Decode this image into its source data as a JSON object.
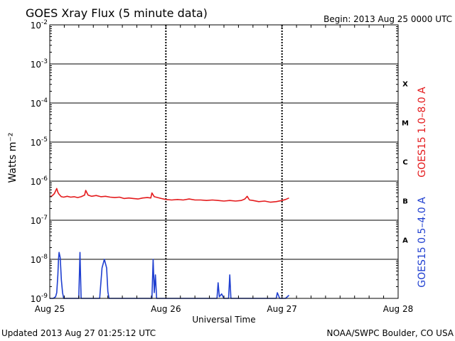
{
  "colors": {
    "long_channel": "#e41a1c",
    "short_channel": "#1f3fd0",
    "axes": "#000000",
    "background": "#ffffff"
  },
  "header": {
    "title": "GOES Xray Flux (5 minute data)",
    "begin_label": "Begin:  2013 Aug 25 0000 UTC"
  },
  "footer": {
    "updated": "Updated 2013 Aug 27 01:25:12 UTC",
    "source": "NOAA/SWPC Boulder, CO USA"
  },
  "chart_data": {
    "type": "line",
    "title": "GOES Xray Flux (5 minute data)",
    "xlabel": "Universal Time",
    "ylabel": "Watts m⁻²",
    "yscale": "log",
    "ylim_exponent": [
      -9,
      -2
    ],
    "xlim_days": [
      0,
      3
    ],
    "x_ticks": [
      {
        "day": 0,
        "label": "Aug 25"
      },
      {
        "day": 1,
        "label": "Aug 26"
      },
      {
        "day": 2,
        "label": "Aug 27"
      },
      {
        "day": 3,
        "label": "Aug 28"
      }
    ],
    "y_ticks": [
      {
        "exp": -2,
        "label": "-2"
      },
      {
        "exp": -3,
        "label": "-3"
      },
      {
        "exp": -4,
        "label": "-4"
      },
      {
        "exp": -5,
        "label": "-5"
      },
      {
        "exp": -6,
        "label": "-6"
      },
      {
        "exp": -7,
        "label": "-7"
      },
      {
        "exp": -8,
        "label": "-8"
      },
      {
        "exp": -9,
        "label": "-9"
      }
    ],
    "flare_classes": [
      {
        "label": "X",
        "exp_mid": -3.5
      },
      {
        "label": "M",
        "exp_mid": -4.5
      },
      {
        "label": "C",
        "exp_mid": -5.5
      },
      {
        "label": "B",
        "exp_mid": -6.5
      },
      {
        "label": "A",
        "exp_mid": -7.5
      }
    ],
    "grid": "horizontal decade lines; dashed vertical lines at day boundaries",
    "series": [
      {
        "name": "GOES15 1.0–8.0 A",
        "color": "#e41a1c",
        "x_day": [
          0.0,
          0.02,
          0.04,
          0.06,
          0.07,
          0.08,
          0.1,
          0.12,
          0.15,
          0.18,
          0.21,
          0.24,
          0.27,
          0.3,
          0.31,
          0.33,
          0.36,
          0.4,
          0.44,
          0.48,
          0.52,
          0.56,
          0.6,
          0.64,
          0.68,
          0.72,
          0.76,
          0.8,
          0.84,
          0.87,
          0.88,
          0.9,
          0.93,
          0.96,
          1.0,
          1.05,
          1.1,
          1.15,
          1.2,
          1.25,
          1.3,
          1.35,
          1.4,
          1.45,
          1.5,
          1.55,
          1.6,
          1.65,
          1.68,
          1.7,
          1.72,
          1.75,
          1.8,
          1.85,
          1.9,
          1.95,
          2.0,
          2.03,
          2.06
        ],
        "y": [
          4e-07,
          4.2e-07,
          4.8e-07,
          6.5e-07,
          5.2e-07,
          4.6e-07,
          4e-07,
          3.9e-07,
          4.1e-07,
          3.9e-07,
          4e-07,
          3.8e-07,
          4e-07,
          4.4e-07,
          5.8e-07,
          4.4e-07,
          4.1e-07,
          4.3e-07,
          4e-07,
          4.1e-07,
          3.9e-07,
          3.8e-07,
          3.9e-07,
          3.6e-07,
          3.7e-07,
          3.6e-07,
          3.5e-07,
          3.7e-07,
          3.8e-07,
          3.7e-07,
          5e-07,
          4e-07,
          3.8e-07,
          3.6e-07,
          3.4e-07,
          3.3e-07,
          3.4e-07,
          3.3e-07,
          3.5e-07,
          3.3e-07,
          3.3e-07,
          3.2e-07,
          3.3e-07,
          3.2e-07,
          3.1e-07,
          3.2e-07,
          3.1e-07,
          3.2e-07,
          3.5e-07,
          4.1e-07,
          3.3e-07,
          3.2e-07,
          3e-07,
          3.1e-07,
          2.9e-07,
          3e-07,
          3.2e-07,
          3.4e-07,
          3.7e-07
        ]
      },
      {
        "name": "GOES15 0.5–4.0 A",
        "color": "#1f3fd0",
        "x_day": [
          0.0,
          0.03,
          0.05,
          0.06,
          0.07,
          0.075,
          0.08,
          0.09,
          0.1,
          0.11,
          0.12,
          0.15,
          0.18,
          0.2,
          0.22,
          0.25,
          0.26,
          0.27,
          0.3,
          0.33,
          0.37,
          0.42,
          0.43,
          0.45,
          0.47,
          0.49,
          0.5,
          0.51,
          0.54,
          0.58,
          0.62,
          0.66,
          0.7,
          0.74,
          0.78,
          0.8,
          0.85,
          0.88,
          0.89,
          0.9,
          0.91,
          0.92,
          0.94,
          0.96,
          0.98,
          1.0,
          1.05,
          1.15,
          1.25,
          1.35,
          1.4,
          1.44,
          1.45,
          1.46,
          1.48,
          1.5,
          1.52,
          1.54,
          1.55,
          1.56,
          1.58,
          1.6,
          1.65,
          1.7,
          1.74,
          1.75,
          1.76,
          1.8,
          1.85,
          1.9,
          1.95,
          1.96,
          1.98,
          2.0,
          2.03,
          2.06
        ],
        "y": [
          1e-09,
          1e-09,
          1.1e-09,
          1.4e-09,
          4e-09,
          1e-08,
          1.5e-08,
          1.1e-08,
          3e-09,
          1.4e-09,
          1e-09,
          1e-09,
          1e-09,
          1e-09,
          1e-09,
          1e-09,
          1.5e-08,
          1e-09,
          1e-09,
          1e-09,
          1e-09,
          1e-09,
          1e-09,
          6e-09,
          1e-08,
          6e-09,
          1.5e-09,
          1e-09,
          1e-09,
          1e-09,
          1e-09,
          1e-09,
          1e-09,
          1e-09,
          1e-09,
          1e-09,
          1e-09,
          1e-09,
          1e-08,
          1.4e-09,
          4e-09,
          1e-09,
          1e-09,
          1e-09,
          1e-09,
          1e-09,
          1e-09,
          1e-09,
          1e-09,
          1e-09,
          1e-09,
          1e-09,
          2.5e-09,
          1.1e-09,
          1.3e-09,
          1e-09,
          1e-09,
          1e-09,
          4e-09,
          1e-09,
          1e-09,
          1e-09,
          1e-09,
          1e-09,
          1e-09,
          1e-09,
          1e-09,
          1e-09,
          1e-09,
          1e-09,
          1e-09,
          1.4e-09,
          1e-09,
          1e-09,
          1e-09,
          1.2e-09
        ]
      }
    ]
  }
}
